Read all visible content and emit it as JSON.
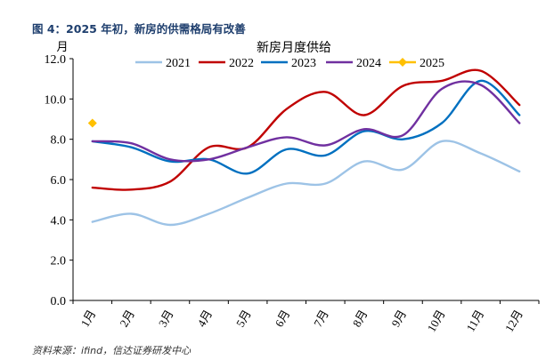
{
  "figure": {
    "title": "图 4：2025 年初，新房的供需格局有改善",
    "source": "资料来源：ifind，信达证券研发中心"
  },
  "chart_data": {
    "type": "line",
    "title": "新房月度供给",
    "ylabel": "月",
    "xlabel": "",
    "ylim": [
      0,
      12
    ],
    "yticks": [
      0,
      2,
      4,
      6,
      8,
      10,
      12
    ],
    "ytick_labels": [
      "0.0",
      "2.0",
      "4.0",
      "6.0",
      "8.0",
      "10.0",
      "12.0"
    ],
    "categories": [
      "1月",
      "2月",
      "3月",
      "4月",
      "5月",
      "6月",
      "7月",
      "8月",
      "9月",
      "10月",
      "11月",
      "12月"
    ],
    "legend_position": "top-center",
    "series": [
      {
        "name": "2021",
        "color": "#9dc3e6",
        "values": [
          3.9,
          4.3,
          3.75,
          4.3,
          5.1,
          5.8,
          5.8,
          6.9,
          6.5,
          7.9,
          7.3,
          6.4
        ]
      },
      {
        "name": "2022",
        "color": "#c00000",
        "values": [
          5.6,
          5.5,
          5.9,
          7.6,
          7.6,
          9.5,
          10.35,
          9.2,
          10.65,
          10.9,
          11.4,
          9.7
        ]
      },
      {
        "name": "2023",
        "color": "#0070c0",
        "values": [
          7.9,
          7.6,
          6.9,
          7.0,
          6.3,
          7.5,
          7.2,
          8.4,
          8.0,
          8.8,
          10.9,
          9.2
        ]
      },
      {
        "name": "2024",
        "color": "#7030a0",
        "values": [
          7.9,
          7.8,
          7.0,
          7.0,
          7.6,
          8.1,
          7.7,
          8.5,
          8.2,
          10.5,
          10.7,
          8.8
        ]
      },
      {
        "name": "2025",
        "color": "#ffc000",
        "values": [
          8.8,
          null,
          null,
          null,
          null,
          null,
          null,
          null,
          null,
          null,
          null,
          null
        ],
        "marker": "diamond"
      }
    ]
  }
}
